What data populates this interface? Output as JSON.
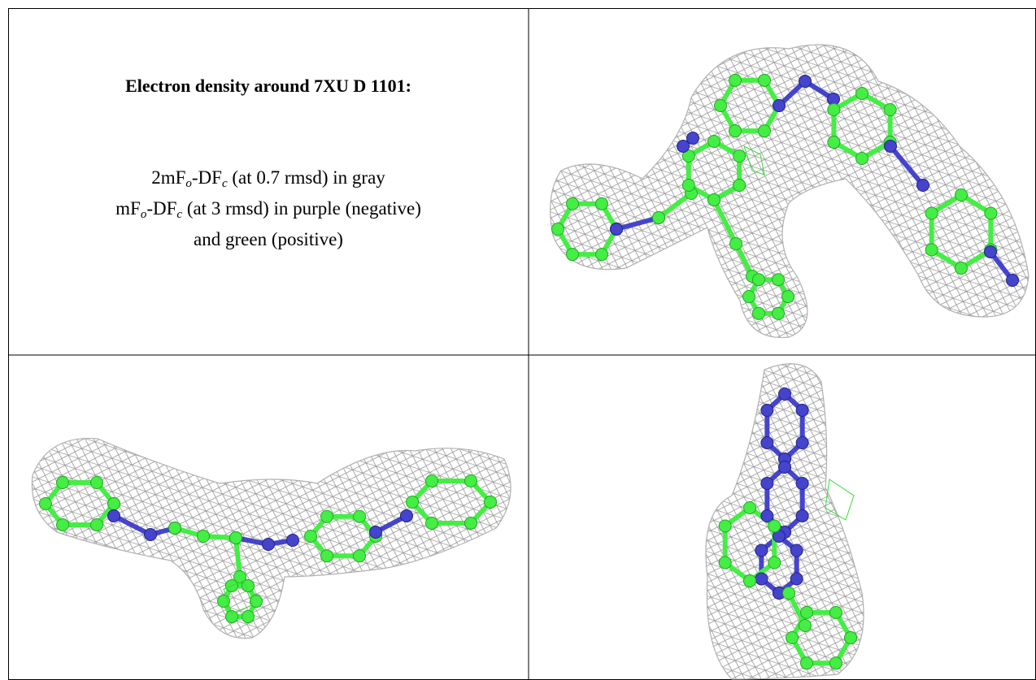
{
  "header": {
    "title": "Electron density around 7XU D 1101:"
  },
  "legend": {
    "lines": [
      [
        "2mF",
        "o",
        "-DF",
        "c",
        " (at 0.7 rmsd) in gray"
      ],
      [
        "mF",
        "o",
        "-DF",
        "c",
        " (at 3 rmsd) in purple (negative)"
      ],
      [
        "and green (positive)"
      ]
    ]
  }
}
